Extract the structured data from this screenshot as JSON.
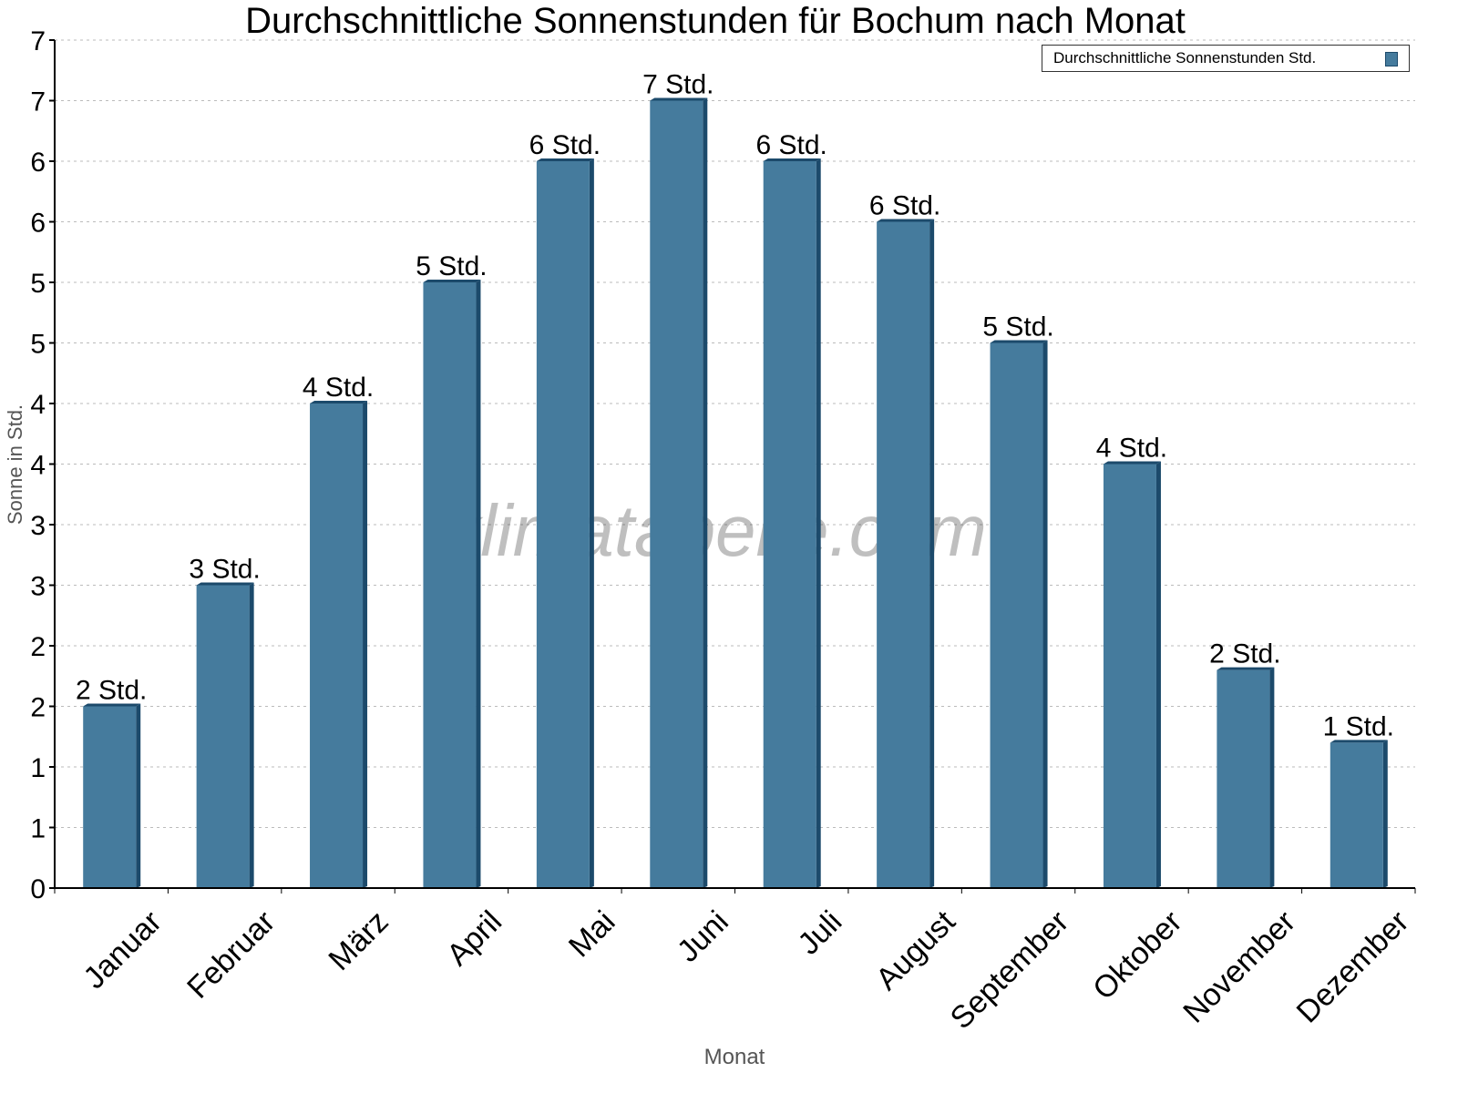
{
  "chart_data": {
    "type": "bar",
    "title": "Durchschnittliche Sonnenstunden für Bochum nach Monat",
    "xlabel": "Monat",
    "ylabel": "Sonne in Std.",
    "categories": [
      "Januar",
      "Februar",
      "März",
      "April",
      "Mai",
      "Juni",
      "Juli",
      "August",
      "September",
      "Oktober",
      "November",
      "Dezember"
    ],
    "series": [
      {
        "name": "Durchschnittliche Sonnenstunden Std.",
        "values": [
          1.5,
          2.5,
          4.0,
          5.0,
          6.0,
          6.5,
          6.0,
          5.5,
          4.5,
          3.5,
          1.8,
          1.2
        ],
        "data_labels": [
          "2 Std.",
          "3 Std.",
          "4 Std.",
          "5 Std.",
          "6 Std.",
          "7 Std.",
          "6 Std.",
          "6 Std.",
          "5 Std.",
          "4 Std.",
          "2 Std.",
          "1 Std."
        ]
      }
    ],
    "ylim": [
      0,
      7
    ],
    "ytick_values": [
      0,
      0.5,
      1,
      1.5,
      2,
      2.5,
      3,
      3.5,
      4,
      4.5,
      5,
      5.5,
      6,
      6.5,
      7
    ],
    "ytick_labels": [
      "0",
      "1",
      "1",
      "2",
      "2",
      "3",
      "3",
      "4",
      "4",
      "5",
      "5",
      "6",
      "6",
      "7",
      "7"
    ],
    "grid": true,
    "legend_position": "top-right",
    "watermark": "klimatabelle.com",
    "colors": {
      "bar": "#457b9d",
      "bar_side": "#1c4a6b",
      "grid": "#bbbbbb"
    }
  }
}
